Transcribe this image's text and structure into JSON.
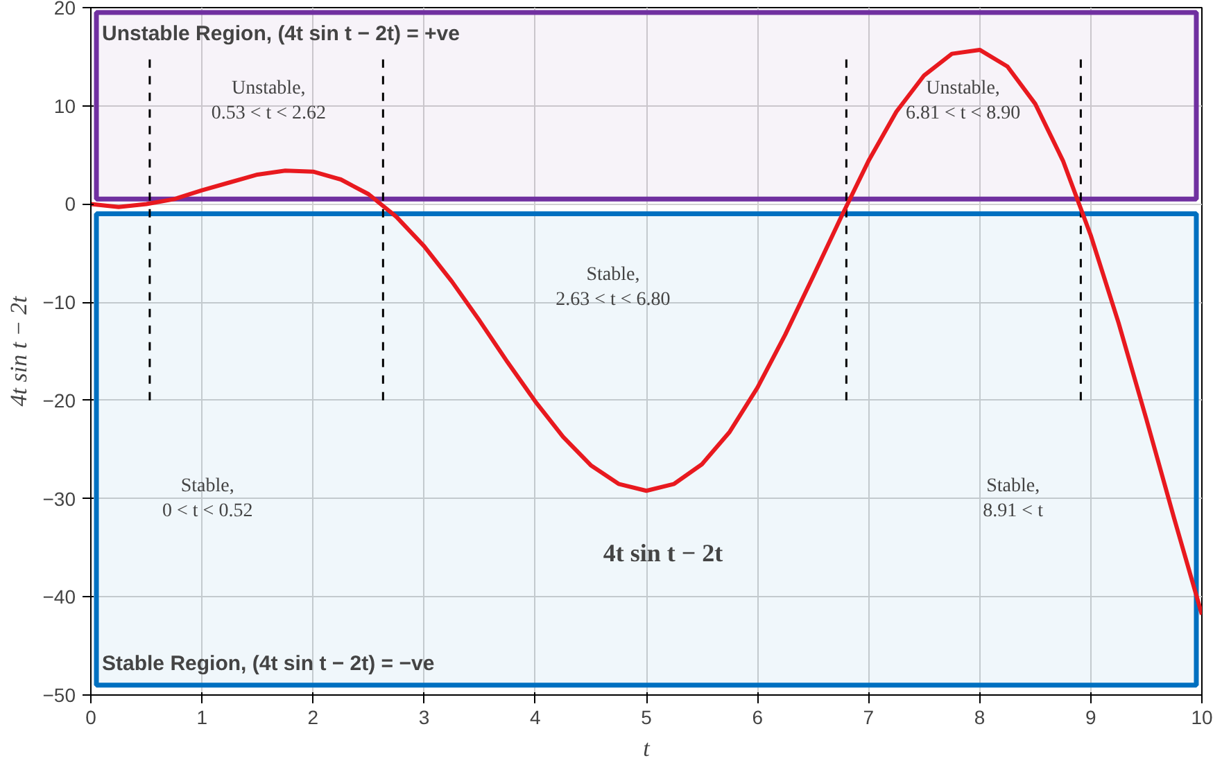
{
  "chart_data": {
    "type": "line",
    "xlabel": "t",
    "ylabel": "4t sin t − 2t",
    "x": [
      0,
      0.25,
      0.5,
      0.75,
      1,
      1.25,
      1.5,
      1.75,
      2,
      2.25,
      2.5,
      2.75,
      3,
      3.25,
      3.5,
      3.75,
      4,
      4.25,
      4.5,
      4.75,
      5,
      5.25,
      5.5,
      5.75,
      6,
      6.25,
      6.5,
      6.75,
      7,
      7.25,
      7.5,
      7.75,
      8,
      8.25,
      8.5,
      8.75,
      9,
      9.25,
      9.5,
      9.75,
      10
    ],
    "series": [
      {
        "color": "#e8191f",
        "values": [
          0,
          -0.3,
          0,
          0.5,
          1.4,
          2.2,
          3.0,
          3.4,
          3.3,
          2.5,
          1.0,
          -1.3,
          -4.3,
          -7.9,
          -11.9,
          -16.1,
          -20.1,
          -23.7,
          -26.6,
          -28.5,
          -29.2,
          -28.5,
          -26.5,
          -23.2,
          -18.7,
          -13.3,
          -7.4,
          -1.4,
          4.4,
          9.4,
          13.1,
          15.3,
          15.7,
          14.0,
          10.2,
          4.4,
          -3.2,
          -12.1,
          -21.9,
          -32.0,
          -41.8
        ]
      }
    ],
    "xlim": [
      0,
      10
    ],
    "ylim": [
      -50,
      20
    ],
    "xticks": [
      0,
      1,
      2,
      3,
      4,
      5,
      6,
      7,
      8,
      9,
      10
    ],
    "yticks": [
      -50,
      -40,
      -30,
      -20,
      -10,
      0,
      10,
      20
    ],
    "grid": true,
    "line_style": "solid",
    "bands": [
      {
        "axis": "y",
        "from": 0.5,
        "to": 19.5,
        "label": "Unstable Region, (4t sin t − 2t) = +ve",
        "color": "#7030a0"
      },
      {
        "axis": "y",
        "from": -49,
        "to": -1,
        "label": "Stable Region, (4t sin t − 2t) = −ve",
        "color": "#0070c0"
      }
    ],
    "ref_lines": [
      {
        "axis": "x",
        "value": 0.53,
        "line_style": "dashed",
        "color": "#000000"
      },
      {
        "axis": "x",
        "value": 2.63,
        "line_style": "dashed",
        "color": "#000000"
      },
      {
        "axis": "x",
        "value": 6.8,
        "line_style": "dashed",
        "color": "#000000"
      },
      {
        "axis": "x",
        "value": 8.91,
        "line_style": "dashed",
        "color": "#000000"
      }
    ],
    "annotations": [
      "Unstable,\n0.53 < t < 2.62",
      "Unstable,\n6.81 < t < 8.90",
      "Stable,\n2.63 < t < 6.80",
      "Stable,\n0 < t < 0.52",
      "Stable,\n8.91 < t",
      "4t sin t − 2t"
    ]
  }
}
